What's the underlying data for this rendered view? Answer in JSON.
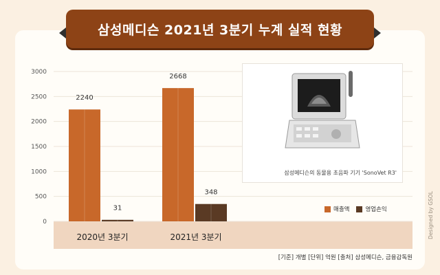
{
  "title": "삼성메디슨 2021년 3분기 누계 실적 현황",
  "chart_data": {
    "type": "bar",
    "categories": [
      "2020년 3분기",
      "2021년 3분기"
    ],
    "series": [
      {
        "name": "매출액",
        "values": [
          2240,
          2668
        ],
        "color": "#c8682a"
      },
      {
        "name": "영업손익",
        "values": [
          31,
          348
        ],
        "color": "#5a3a24"
      }
    ],
    "ylim": [
      0,
      3000
    ],
    "yticks": [
      0,
      500,
      1000,
      1500,
      2000,
      2500,
      3000
    ],
    "grid": true,
    "legend_position": "bottom-right"
  },
  "product_caption": "삼성메디슨의 동물용 초음파 기기 'SonoVet R3'",
  "footer_note": "[기준] 개별   [단위] 억원   [출처] 삼성메디슨, 금융감독원",
  "credit": "Designed by GSOL",
  "colors": {
    "background": "#fbf0e2",
    "banner": "#8d4316",
    "axis_band": "#f0d6c0"
  }
}
